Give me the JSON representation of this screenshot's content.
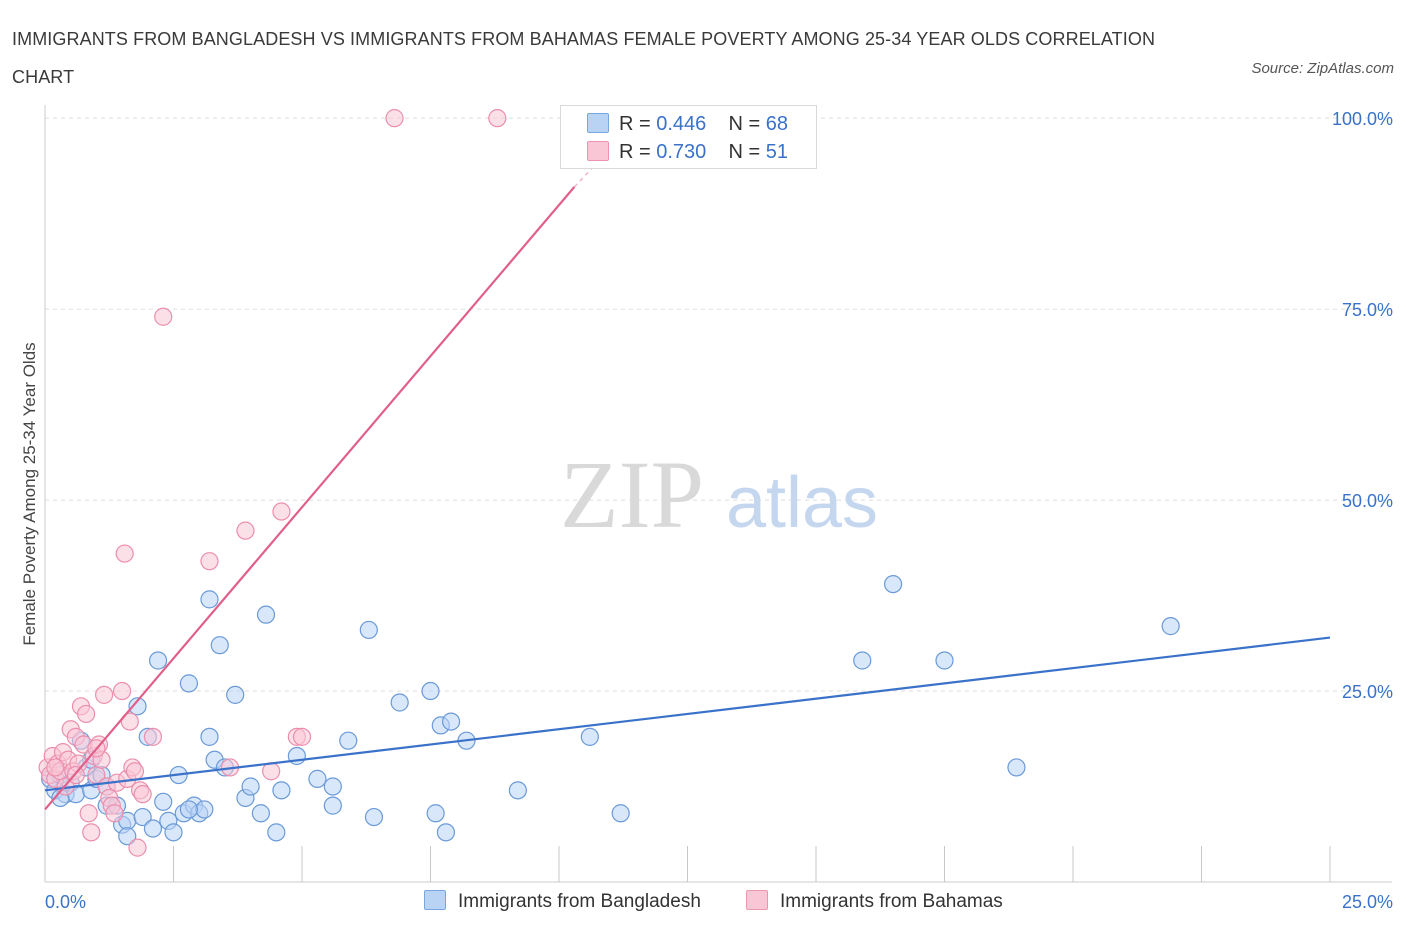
{
  "title": "IMMIGRANTS FROM BANGLADESH VS IMMIGRANTS FROM BAHAMAS FEMALE POVERTY AMONG 25-34 YEAR OLDS CORRELATION CHART",
  "source": "Source: ZipAtlas.com",
  "watermark": {
    "zip": "ZIP",
    "atlas": "atlas"
  },
  "legend": {
    "r_label": "R =",
    "n_label": "N =",
    "rows": [
      {
        "r": "0.446",
        "n": "68",
        "fill": "#b9d3f5",
        "stroke": "#7aa7e0"
      },
      {
        "r": "0.730",
        "n": "51",
        "fill": "#f9c6d6",
        "stroke": "#ee94b1"
      }
    ]
  },
  "chart_data": {
    "type": "scatter",
    "title": "IMMIGRANTS FROM BANGLADESH VS IMMIGRANTS FROM BAHAMAS FEMALE POVERTY AMONG 25-34 YEAR OLDS CORRELATION CHART",
    "xlabel": "",
    "ylabel": "Female Poverty Among 25-34 Year Olds",
    "xlim": [
      0,
      25
    ],
    "ylim": [
      0,
      100
    ],
    "x_tick_labels": [
      "0.0%",
      "25.0%"
    ],
    "y_tick_labels": [
      "25.0%",
      "50.0%",
      "75.0%",
      "100.0%"
    ],
    "grid": true,
    "legend_position": "top-center",
    "series": [
      {
        "name": "Immigrants from Bangladesh",
        "color": "#3a72c9",
        "fill": "#b9d3f5",
        "r": 0.446,
        "n": 68,
        "trend": {
          "x": [
            0,
            25
          ],
          "y": [
            12.0,
            32.0
          ]
        },
        "points": [
          [
            0.1,
            13.5
          ],
          [
            0.2,
            12.0
          ],
          [
            0.3,
            14.0
          ],
          [
            0.4,
            11.5
          ],
          [
            0.5,
            13.0
          ],
          [
            0.6,
            11.5
          ],
          [
            0.7,
            18.5
          ],
          [
            0.8,
            15.0
          ],
          [
            0.9,
            12.0
          ],
          [
            1.0,
            13.5
          ],
          [
            1.1,
            14.0
          ],
          [
            1.2,
            12.5
          ],
          [
            1.2,
            10.0
          ],
          [
            1.4,
            10.0
          ],
          [
            1.5,
            7.5
          ],
          [
            1.6,
            8.0
          ],
          [
            1.6,
            6.0
          ],
          [
            1.8,
            23.0
          ],
          [
            1.9,
            8.5
          ],
          [
            2.0,
            19.0
          ],
          [
            2.1,
            7.0
          ],
          [
            2.2,
            29.0
          ],
          [
            2.3,
            10.5
          ],
          [
            2.4,
            8.0
          ],
          [
            2.5,
            6.5
          ],
          [
            2.6,
            14.0
          ],
          [
            2.7,
            9.0
          ],
          [
            2.8,
            26.0
          ],
          [
            2.9,
            10.0
          ],
          [
            3.0,
            9.0
          ],
          [
            3.1,
            9.5
          ],
          [
            3.2,
            37.0
          ],
          [
            3.2,
            19.0
          ],
          [
            3.3,
            16.0
          ],
          [
            3.4,
            31.0
          ],
          [
            3.5,
            15.0
          ],
          [
            3.7,
            24.5
          ],
          [
            3.9,
            11.0
          ],
          [
            4.0,
            12.5
          ],
          [
            4.2,
            9.0
          ],
          [
            4.3,
            35.0
          ],
          [
            4.5,
            6.5
          ],
          [
            4.6,
            12.0
          ],
          [
            4.9,
            16.5
          ],
          [
            5.3,
            13.5
          ],
          [
            5.6,
            10.0
          ],
          [
            5.6,
            12.5
          ],
          [
            5.9,
            18.5
          ],
          [
            6.3,
            33.0
          ],
          [
            6.4,
            8.5
          ],
          [
            6.9,
            23.5
          ],
          [
            7.5,
            25.0
          ],
          [
            7.6,
            9.0
          ],
          [
            7.7,
            20.5
          ],
          [
            7.8,
            6.5
          ],
          [
            7.9,
            21.0
          ],
          [
            8.2,
            18.5
          ],
          [
            9.2,
            12.0
          ],
          [
            10.6,
            19.0
          ],
          [
            11.2,
            9.0
          ],
          [
            15.9,
            29.0
          ],
          [
            16.5,
            39.0
          ],
          [
            17.5,
            29.0
          ],
          [
            18.9,
            15.0
          ],
          [
            21.9,
            33.5
          ],
          [
            0.3,
            11.0
          ],
          [
            0.9,
            16.0
          ],
          [
            2.8,
            9.5
          ]
        ]
      },
      {
        "name": "Immigrants from Bahamas",
        "color": "#e0608a",
        "fill": "#f9c6d6",
        "r": 0.73,
        "n": 51,
        "trend": {
          "x": [
            0,
            10.3
          ],
          "y": [
            9.5,
            91.0
          ]
        },
        "trend_dashed": {
          "x": [
            10.3,
            11.0
          ],
          "y": [
            91.0,
            96.0
          ]
        },
        "points": [
          [
            0.05,
            15.0
          ],
          [
            0.1,
            14.0
          ],
          [
            0.15,
            16.5
          ],
          [
            0.2,
            13.5
          ],
          [
            0.25,
            15.5
          ],
          [
            0.3,
            14.5
          ],
          [
            0.35,
            17.0
          ],
          [
            0.4,
            12.5
          ],
          [
            0.45,
            16.0
          ],
          [
            0.5,
            20.0
          ],
          [
            0.55,
            14.5
          ],
          [
            0.6,
            19.0
          ],
          [
            0.65,
            15.5
          ],
          [
            0.7,
            23.0
          ],
          [
            0.75,
            18.0
          ],
          [
            0.8,
            22.0
          ],
          [
            0.85,
            9.0
          ],
          [
            0.9,
            6.5
          ],
          [
            0.95,
            16.5
          ],
          [
            1.0,
            14.0
          ],
          [
            1.05,
            18.0
          ],
          [
            1.1,
            16.0
          ],
          [
            1.15,
            24.5
          ],
          [
            1.2,
            12.5
          ],
          [
            1.25,
            11.0
          ],
          [
            1.3,
            10.0
          ],
          [
            1.35,
            9.0
          ],
          [
            1.4,
            13.0
          ],
          [
            1.5,
            25.0
          ],
          [
            1.55,
            43.0
          ],
          [
            1.6,
            13.5
          ],
          [
            1.65,
            21.0
          ],
          [
            1.7,
            15.0
          ],
          [
            1.75,
            14.5
          ],
          [
            1.8,
            4.5
          ],
          [
            1.85,
            12.0
          ],
          [
            1.9,
            11.5
          ],
          [
            2.1,
            19.0
          ],
          [
            2.3,
            74.0
          ],
          [
            3.2,
            42.0
          ],
          [
            3.6,
            15.0
          ],
          [
            3.9,
            46.0
          ],
          [
            4.4,
            14.5
          ],
          [
            4.6,
            48.5
          ],
          [
            4.9,
            19.0
          ],
          [
            5.0,
            19.0
          ],
          [
            6.8,
            100.0
          ],
          [
            8.8,
            100.0
          ],
          [
            0.2,
            15.0
          ],
          [
            0.6,
            14.0
          ],
          [
            1.0,
            17.5
          ]
        ]
      }
    ]
  },
  "bottom_legend": [
    {
      "label": "Immigrants from Bangladesh",
      "fill": "#b9d3f5",
      "stroke": "#7aa7e0"
    },
    {
      "label": "Immigrants from Bahamas",
      "fill": "#f9c6d6",
      "stroke": "#ee94b1"
    }
  ]
}
